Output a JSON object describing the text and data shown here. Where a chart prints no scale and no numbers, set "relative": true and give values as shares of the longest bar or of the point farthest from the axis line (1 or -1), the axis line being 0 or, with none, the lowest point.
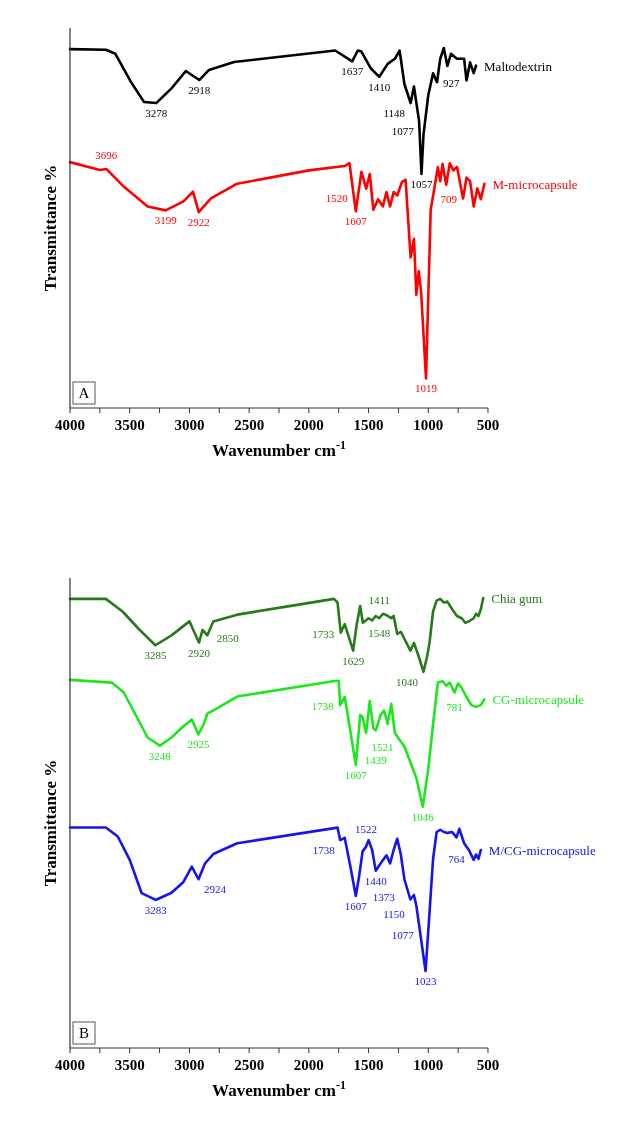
{
  "chart_data": [
    {
      "type": "line",
      "relative": true,
      "ylabel": "Transmittance %",
      "xlabel": "Wavenumber cm$^{-1}$",
      "xlim": [
        4000,
        500
      ],
      "xticks": [
        4000,
        {
          "value": 3750,
          "label": null
        },
        3500,
        {
          "value": 3250,
          "label": null
        },
        3000,
        {
          "value": 2750,
          "label": null
        },
        2500,
        {
          "value": 2250,
          "label": null
        },
        2000,
        {
          "value": 1750,
          "label": null
        },
        1500,
        {
          "value": 1250,
          "label": null
        },
        1000,
        {
          "value": 750,
          "label": null
        },
        500
      ],
      "series": [
        {
          "name": "Maltodextrin",
          "color": "#000000",
          "x": [
            4000,
            3700,
            3620,
            3490,
            3380,
            3278,
            3150,
            3030,
            2918,
            2836,
            2626,
            2259,
            1780,
            1637,
            1590,
            1560,
            1480,
            1410,
            1340,
            1280,
            1240,
            1200,
            1148,
            1120,
            1077,
            1057,
            1040,
            1000,
            960,
            927,
            900,
            870,
            840,
            810,
            760,
            700,
            680,
            650,
            620,
            600
          ],
          "values": [
            0.997,
            0.995,
            0.984,
            0.906,
            0.85,
            0.847,
            0.888,
            0.936,
            0.911,
            0.939,
            0.961,
            0.975,
            0.993,
            0.963,
            0.993,
            0.99,
            0.943,
            0.92,
            0.956,
            0.97,
            0.993,
            0.9,
            0.847,
            0.893,
            0.797,
            0.65,
            0.76,
            0.869,
            0.93,
            0.905,
            0.97,
            1.0,
            0.95,
            0.984,
            0.97,
            0.97,
            0.91,
            0.96,
            0.93,
            0.951
          ]
        },
        {
          "name": "M-microcapsule",
          "color": "#ff0000",
          "x": [
            4000,
            3750,
            3696,
            3550,
            3350,
            3199,
            3050,
            2970,
            2922,
            2820,
            2600,
            2000,
            1700,
            1660,
            1607,
            1560,
            1520,
            1490,
            1460,
            1420,
            1380,
            1350,
            1320,
            1290,
            1260,
            1220,
            1190,
            1148,
            1120,
            1100,
            1080,
            1060,
            1019,
            980,
            950,
            920,
            900,
            880,
            850,
            820,
            790,
            760,
            709,
            680,
            650,
            620,
            590,
            560,
            530
          ],
          "values": [
            0.683,
            0.661,
            0.664,
            0.615,
            0.56,
            0.549,
            0.574,
            0.601,
            0.544,
            0.582,
            0.623,
            0.66,
            0.672,
            0.68,
            0.546,
            0.656,
            0.609,
            0.65,
            0.551,
            0.58,
            0.56,
            0.6,
            0.56,
            0.6,
            0.59,
            0.628,
            0.634,
            0.418,
            0.47,
            0.314,
            0.38,
            0.322,
            0.082,
            0.55,
            0.609,
            0.669,
            0.63,
            0.678,
            0.62,
            0.68,
            0.66,
            0.67,
            0.582,
            0.64,
            0.63,
            0.56,
            0.61,
            0.58,
            0.623
          ]
        }
      ],
      "annotations": [
        {
          "text": "3278",
          "x": 3278,
          "y": 0.847
        },
        {
          "text": "2918",
          "x": 2918,
          "y": 0.911
        },
        {
          "text": "1637",
          "x": 1637,
          "y": 0.963
        },
        {
          "text": "1410",
          "x": 1410,
          "y": 0.92
        },
        {
          "text": "1148",
          "x": 1148,
          "y": 0.847
        },
        {
          "text": "1077",
          "x": 1077,
          "y": 0.797
        },
        {
          "text": "1057",
          "x": 1057,
          "y": 0.65
        },
        {
          "text": "927",
          "x": 927,
          "y": 0.905
        },
        {
          "text": "3696",
          "x": 3696,
          "y": 0.664
        },
        {
          "text": "3199",
          "x": 3199,
          "y": 0.549
        },
        {
          "text": "2922",
          "x": 2922,
          "y": 0.544
        },
        {
          "text": "1607",
          "x": 1607,
          "y": 0.546
        },
        {
          "text": "1520",
          "x": 1520,
          "y": 0.609
        },
        {
          "text": "1019",
          "x": 1019,
          "y": 0.082
        },
        {
          "text": "709",
          "x": 709,
          "y": 0.582
        },
        "A"
      ]
    },
    {
      "type": "line",
      "relative": true,
      "ylabel": "Transmittance %",
      "xlabel": "Wavenumber cm$^{-1}$",
      "xlim": [
        4000,
        500
      ],
      "xticks": [
        4000,
        {
          "value": 3750,
          "label": null
        },
        3500,
        {
          "value": 3250,
          "label": null
        },
        3000,
        {
          "value": 2750,
          "label": null
        },
        2500,
        {
          "value": 2250,
          "label": null
        },
        2000,
        {
          "value": 1750,
          "label": null
        },
        1500,
        {
          "value": 1250,
          "label": null
        },
        1000,
        {
          "value": 750,
          "label": null
        },
        500
      ],
      "series": [
        {
          "name": "Chia gum",
          "color": "#267a19",
          "x": [
            4000,
            3700,
            3560,
            3420,
            3285,
            3150,
            3000,
            2920,
            2890,
            2850,
            2800,
            2600,
            1790,
            1760,
            1733,
            1700,
            1629,
            1600,
            1570,
            1548,
            1500,
            1470,
            1440,
            1411,
            1380,
            1350,
            1310,
            1290,
            1260,
            1230,
            1150,
            1120,
            1080,
            1040,
            1010,
            990,
            960,
            930,
            900,
            870,
            840,
            800,
            760,
            720,
            690,
            660,
            620,
            600,
            580,
            560,
            540
          ],
          "values": [
            0.998,
            0.998,
            0.97,
            0.93,
            0.895,
            0.917,
            0.948,
            0.901,
            0.929,
            0.917,
            0.948,
            0.963,
            0.998,
            0.99,
            0.923,
            0.942,
            0.883,
            0.94,
            0.982,
            0.945,
            0.955,
            0.95,
            0.96,
            0.955,
            0.965,
            0.962,
            0.955,
            0.96,
            0.92,
            0.925,
            0.883,
            0.9,
            0.87,
            0.836,
            0.87,
            0.9,
            0.97,
            0.994,
            0.998,
            0.99,
            0.992,
            0.975,
            0.96,
            0.955,
            0.945,
            0.948,
            0.955,
            0.965,
            0.96,
            0.975,
            1.0
          ]
        },
        {
          "name": "CG-microcapsule",
          "color": "#1ee61e",
          "x": [
            4000,
            3650,
            3550,
            3450,
            3350,
            3248,
            3150,
            3050,
            2980,
            2925,
            2880,
            2850,
            2800,
            2600,
            1800,
            1750,
            1738,
            1700,
            1650,
            1607,
            1570,
            1550,
            1521,
            1490,
            1460,
            1439,
            1400,
            1370,
            1340,
            1310,
            1280,
            1200,
            1100,
            1046,
            1000,
            960,
            920,
            880,
            850,
            820,
            781,
            750,
            720,
            680,
            640,
            600,
            560,
            530
          ],
          "values": [
            0.818,
            0.812,
            0.79,
            0.74,
            0.69,
            0.672,
            0.69,
            0.715,
            0.73,
            0.697,
            0.72,
            0.743,
            0.75,
            0.781,
            0.815,
            0.816,
            0.762,
            0.78,
            0.7,
            0.629,
            0.74,
            0.735,
            0.7,
            0.771,
            0.71,
            0.706,
            0.74,
            0.75,
            0.72,
            0.765,
            0.7,
            0.67,
            0.6,
            0.536,
            0.62,
            0.72,
            0.812,
            0.815,
            0.805,
            0.812,
            0.79,
            0.81,
            0.8,
            0.78,
            0.762,
            0.758,
            0.762,
            0.775
          ]
        },
        {
          "name": "M/CG-microcapsule",
          "color": "#1414f0",
          "x": [
            4000,
            3700,
            3600,
            3500,
            3400,
            3283,
            3150,
            3050,
            2980,
            2924,
            2870,
            2800,
            2600,
            1800,
            1760,
            1738,
            1700,
            1650,
            1607,
            1580,
            1550,
            1522,
            1500,
            1470,
            1440,
            1400,
            1373,
            1350,
            1320,
            1290,
            1260,
            1230,
            1200,
            1150,
            1120,
            1100,
            1077,
            1023,
            990,
            960,
            930,
            900,
            870,
            840,
            800,
            764,
            740,
            700,
            660,
            620,
            600,
            580,
            560
          ],
          "values": [
            0.49,
            0.49,
            0.47,
            0.418,
            0.344,
            0.329,
            0.345,
            0.369,
            0.403,
            0.375,
            0.41,
            0.431,
            0.455,
            0.488,
            0.49,
            0.462,
            0.467,
            0.4,
            0.338,
            0.38,
            0.437,
            0.447,
            0.462,
            0.44,
            0.394,
            0.41,
            0.42,
            0.428,
            0.41,
            0.44,
            0.465,
            0.43,
            0.375,
            0.33,
            0.34,
            0.316,
            0.273,
            0.171,
            0.3,
            0.42,
            0.48,
            0.485,
            0.48,
            0.478,
            0.48,
            0.468,
            0.487,
            0.455,
            0.44,
            0.418,
            0.43,
            0.42,
            0.44
          ]
        }
      ],
      "annotations": [
        {
          "text": "3285",
          "x": 3285,
          "y": 0.895
        },
        {
          "text": "2920",
          "x": 2920,
          "y": 0.901
        },
        {
          "text": "2850",
          "x": 2850,
          "y": 0.917
        },
        {
          "text": "1733",
          "x": 1733,
          "y": 0.923
        },
        {
          "text": "1629",
          "x": 1629,
          "y": 0.883
        },
        {
          "text": "1548",
          "x": 1548,
          "y": 0.945
        },
        {
          "text": "1411",
          "x": 1411,
          "y": 0.955
        },
        {
          "text": "1040",
          "x": 1040,
          "y": 0.836
        },
        {
          "text": "1738",
          "x": 1738,
          "y": 0.762
        },
        {
          "text": "3248",
          "x": 3248,
          "y": 0.672
        },
        {
          "text": "2925",
          "x": 2925,
          "y": 0.697
        },
        {
          "text": "1607",
          "x": 1607,
          "y": 0.629
        },
        {
          "text": "1521",
          "x": 1521,
          "y": 0.7
        },
        {
          "text": "1439",
          "x": 1439,
          "y": 0.706
        },
        {
          "text": "1046",
          "x": 1046,
          "y": 0.536
        },
        {
          "text": "781",
          "x": 781,
          "y": 0.79
        },
        {
          "text": "1738",
          "x": 1738,
          "y": 0.462
        },
        {
          "text": "1522",
          "x": 1522,
          "y": 0.447
        },
        {
          "text": "3283",
          "x": 3283,
          "y": 0.329
        },
        {
          "text": "2924",
          "x": 2924,
          "y": 0.375
        },
        {
          "text": "1607",
          "x": 1607,
          "y": 0.338
        },
        {
          "text": "1440",
          "x": 1440,
          "y": 0.394
        },
        {
          "text": "1373",
          "x": 1373,
          "y": 0.42
        },
        {
          "text": "1150",
          "x": 1150,
          "y": 0.33
        },
        {
          "text": "1077",
          "x": 1077,
          "y": 0.273
        },
        {
          "text": "1023",
          "x": 1023,
          "y": 0.171
        },
        {
          "text": "764",
          "x": 764,
          "y": 0.468
        },
        "B"
      ]
    }
  ]
}
